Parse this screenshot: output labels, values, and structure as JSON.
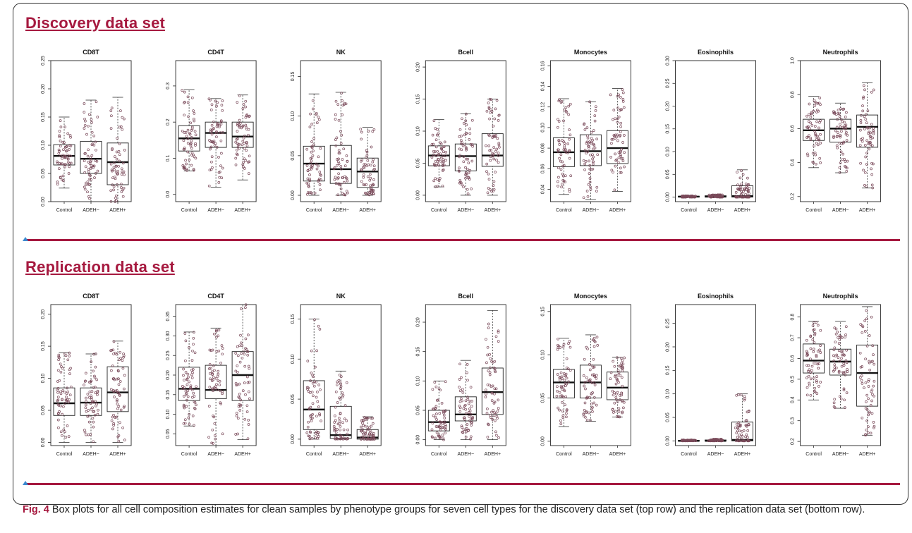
{
  "sections": [
    {
      "title": "Discovery data set"
    },
    {
      "title": "Replication data set"
    }
  ],
  "caption": {
    "fig_label": "Fig. 4",
    "text": " Box plots for all cell composition estimates for clean samples by phenotype groups for seven cell types for the discovery data set (top row) and the replication data set (bottom row)."
  },
  "colors": {
    "accent": "#a6193f",
    "marker": "#3a8ad0",
    "points": "#7a4a5a"
  },
  "chart_data": [
    {
      "type": "box",
      "row": "Discovery data set",
      "title": "CD8T",
      "categories": [
        "Control",
        "ADEH−",
        "ADEH+"
      ],
      "ylim": [
        0,
        0.25
      ],
      "yticks": [
        "0.00",
        "0.05",
        "0.10",
        "0.15",
        "0.20",
        "0.25"
      ],
      "boxes": [
        {
          "min": 0.024,
          "q1": 0.065,
          "median": 0.081,
          "q3": 0.101,
          "max": 0.15
        },
        {
          "min": 0.0,
          "q1": 0.05,
          "median": 0.076,
          "q3": 0.107,
          "max": 0.18
        },
        {
          "min": 0.0,
          "q1": 0.03,
          "median": 0.07,
          "q3": 0.104,
          "max": 0.185
        }
      ]
    },
    {
      "type": "box",
      "row": "Discovery data set",
      "title": "CD4T",
      "categories": [
        "Control",
        "ADEH−",
        "ADEH+"
      ],
      "ylim": [
        -0.02,
        0.37
      ],
      "yticks": [
        "0.0",
        "0.1",
        "0.2",
        "0.3"
      ],
      "boxes": [
        {
          "min": 0.065,
          "q1": 0.12,
          "median": 0.155,
          "q3": 0.19,
          "max": 0.29
        },
        {
          "min": 0.02,
          "q1": 0.13,
          "median": 0.17,
          "q3": 0.2,
          "max": 0.265
        },
        {
          "min": 0.04,
          "q1": 0.13,
          "median": 0.16,
          "q3": 0.2,
          "max": 0.275
        }
      ]
    },
    {
      "type": "box",
      "row": "Discovery data set",
      "title": "NK",
      "categories": [
        "Control",
        "ADEH−",
        "ADEH+"
      ],
      "ylim": [
        -0.008,
        0.17
      ],
      "yticks": [
        "0.00",
        "0.05",
        "0.10",
        "0.15"
      ],
      "boxes": [
        {
          "min": 0.0,
          "q1": 0.018,
          "median": 0.04,
          "q3": 0.062,
          "max": 0.128
        },
        {
          "min": 0.0,
          "q1": 0.015,
          "median": 0.033,
          "q3": 0.063,
          "max": 0.13
        },
        {
          "min": 0.0,
          "q1": 0.01,
          "median": 0.03,
          "q3": 0.047,
          "max": 0.086
        }
      ]
    },
    {
      "type": "box",
      "row": "Discovery data set",
      "title": "Bcell",
      "categories": [
        "Control",
        "ADEH−",
        "ADEH+"
      ],
      "ylim": [
        -0.01,
        0.21
      ],
      "yticks": [
        "0.00",
        "0.05",
        "0.10",
        "0.15",
        "0.20"
      ],
      "boxes": [
        {
          "min": 0.013,
          "q1": 0.046,
          "median": 0.062,
          "q3": 0.077,
          "max": 0.118
        },
        {
          "min": 0.0,
          "q1": 0.038,
          "median": 0.061,
          "q3": 0.08,
          "max": 0.127
        },
        {
          "min": 0.0,
          "q1": 0.045,
          "median": 0.062,
          "q3": 0.096,
          "max": 0.15
        }
      ]
    },
    {
      "type": "box",
      "row": "Discovery data set",
      "title": "Monocytes",
      "categories": [
        "Control",
        "ADEH−",
        "ADEH+"
      ],
      "ylim": [
        0.028,
        0.165
      ],
      "yticks": [
        "0.04",
        "0.06",
        "0.08",
        "0.10",
        "0.12",
        "0.14",
        "0.16"
      ],
      "boxes": [
        {
          "min": 0.035,
          "q1": 0.062,
          "median": 0.076,
          "q3": 0.09,
          "max": 0.128
        },
        {
          "min": 0.03,
          "q1": 0.063,
          "median": 0.077,
          "q3": 0.093,
          "max": 0.125
        },
        {
          "min": 0.038,
          "q1": 0.065,
          "median": 0.08,
          "q3": 0.097,
          "max": 0.138
        }
      ]
    },
    {
      "type": "box",
      "row": "Discovery data set",
      "title": "Eosinophils",
      "categories": [
        "Control",
        "ADEH−",
        "ADEH+"
      ],
      "ylim": [
        -0.01,
        0.3
      ],
      "yticks": [
        "0.00",
        "0.05",
        "0.10",
        "0.15",
        "0.20",
        "0.25",
        "0.30"
      ],
      "boxes": [
        {
          "min": 0.0,
          "q1": 0.0,
          "median": 0.001,
          "q3": 0.002,
          "max": 0.003
        },
        {
          "min": 0.0,
          "q1": 0.0,
          "median": 0.001,
          "q3": 0.003,
          "max": 0.005
        },
        {
          "min": 0.0,
          "q1": 0.0,
          "median": 0.002,
          "q3": 0.025,
          "max": 0.06
        }
      ]
    },
    {
      "type": "box",
      "row": "Discovery data set",
      "title": "Neutrophils",
      "categories": [
        "Control",
        "ADEH−",
        "ADEH+"
      ],
      "ylim": [
        0.17,
        1.0
      ],
      "yticks": [
        "0.2",
        "0.4",
        "0.6",
        "0.8",
        "1.0"
      ],
      "boxes": [
        {
          "min": 0.37,
          "q1": 0.53,
          "median": 0.59,
          "q3": 0.655,
          "max": 0.79
        },
        {
          "min": 0.34,
          "q1": 0.52,
          "median": 0.6,
          "q3": 0.655,
          "max": 0.75
        },
        {
          "min": 0.25,
          "q1": 0.49,
          "median": 0.61,
          "q3": 0.68,
          "max": 0.87
        }
      ]
    },
    {
      "type": "box",
      "row": "Replication data set",
      "title": "CD8T",
      "categories": [
        "Control",
        "ADEH−",
        "ADEH+"
      ],
      "ylim": [
        -0.005,
        0.215
      ],
      "yticks": [
        "0.00",
        "0.05",
        "0.10",
        "0.15",
        "0.20"
      ],
      "boxes": [
        {
          "min": 0.0,
          "q1": 0.042,
          "median": 0.061,
          "q3": 0.085,
          "max": 0.14
        },
        {
          "min": 0.0,
          "q1": 0.042,
          "median": 0.062,
          "q3": 0.085,
          "max": 0.138
        },
        {
          "min": 0.0,
          "q1": 0.048,
          "median": 0.078,
          "q3": 0.118,
          "max": 0.158
        }
      ]
    },
    {
      "type": "box",
      "row": "Replication data set",
      "title": "CD4T",
      "categories": [
        "Control",
        "ADEH−",
        "ADEH+"
      ],
      "ylim": [
        0.02,
        0.38
      ],
      "yticks": [
        "0.05",
        "0.10",
        "0.15",
        "0.20",
        "0.25",
        "0.30",
        "0.35"
      ],
      "boxes": [
        {
          "min": 0.07,
          "q1": 0.135,
          "median": 0.165,
          "q3": 0.22,
          "max": 0.31
        },
        {
          "min": 0.02,
          "q1": 0.14,
          "median": 0.162,
          "q3": 0.225,
          "max": 0.32
        },
        {
          "min": 0.035,
          "q1": 0.135,
          "median": 0.2,
          "q3": 0.26,
          "max": 0.38
        }
      ]
    },
    {
      "type": "box",
      "row": "Replication data set",
      "title": "NK",
      "categories": [
        "Control",
        "ADEH−",
        "ADEH+"
      ],
      "ylim": [
        -0.008,
        0.168
      ],
      "yticks": [
        "0.00",
        "0.05",
        "0.10",
        "0.15"
      ],
      "boxes": [
        {
          "min": 0.0,
          "q1": 0.012,
          "median": 0.037,
          "q3": 0.073,
          "max": 0.15
        },
        {
          "min": 0.0,
          "q1": 0.001,
          "median": 0.005,
          "q3": 0.041,
          "max": 0.085
        },
        {
          "min": 0.0,
          "q1": 0.0,
          "median": 0.002,
          "q3": 0.012,
          "max": 0.028
        }
      ]
    },
    {
      "type": "box",
      "row": "Replication data set",
      "title": "Bcell",
      "categories": [
        "Control",
        "ADEH−",
        "ADEH+"
      ],
      "ylim": [
        -0.01,
        0.23
      ],
      "yticks": [
        "0.00",
        "0.05",
        "0.10",
        "0.15",
        "0.20"
      ],
      "boxes": [
        {
          "min": 0.0,
          "q1": 0.015,
          "median": 0.03,
          "q3": 0.05,
          "max": 0.1
        },
        {
          "min": 0.0,
          "q1": 0.032,
          "median": 0.043,
          "q3": 0.073,
          "max": 0.135
        },
        {
          "min": 0.0,
          "q1": 0.043,
          "median": 0.081,
          "q3": 0.122,
          "max": 0.22
        }
      ]
    },
    {
      "type": "box",
      "row": "Replication data set",
      "title": "Monocytes",
      "categories": [
        "Control",
        "ADEH−",
        "ADEH+"
      ],
      "ylim": [
        -0.005,
        0.158
      ],
      "yticks": [
        "0.00",
        "0.05",
        "0.10",
        "0.15"
      ],
      "boxes": [
        {
          "min": 0.017,
          "q1": 0.05,
          "median": 0.068,
          "q3": 0.083,
          "max": 0.119
        },
        {
          "min": 0.023,
          "q1": 0.05,
          "median": 0.068,
          "q3": 0.088,
          "max": 0.123
        },
        {
          "min": 0.028,
          "q1": 0.048,
          "median": 0.062,
          "q3": 0.08,
          "max": 0.097
        }
      ]
    },
    {
      "type": "box",
      "row": "Replication data set",
      "title": "Eosinophils",
      "categories": [
        "Control",
        "ADEH−",
        "ADEH+"
      ],
      "ylim": [
        -0.01,
        0.29
      ],
      "yticks": [
        "0.00",
        "0.05",
        "0.10",
        "0.15",
        "0.20",
        "0.25"
      ],
      "boxes": [
        {
          "min": 0.0,
          "q1": 0.0,
          "median": 0.0,
          "q3": 0.001,
          "max": 0.002
        },
        {
          "min": 0.0,
          "q1": 0.0,
          "median": 0.0,
          "q3": 0.002,
          "max": 0.004
        },
        {
          "min": 0.0,
          "q1": 0.0,
          "median": 0.002,
          "q3": 0.04,
          "max": 0.1
        }
      ]
    },
    {
      "type": "box",
      "row": "Replication data set",
      "title": "Neutrophils",
      "categories": [
        "Control",
        "ADEH−",
        "ADEH+"
      ],
      "ylim": [
        0.18,
        0.86
      ],
      "yticks": [
        "0.2",
        "0.3",
        "0.4",
        "0.5",
        "0.6",
        "0.7",
        "0.8"
      ],
      "boxes": [
        {
          "min": 0.4,
          "q1": 0.53,
          "median": 0.59,
          "q3": 0.67,
          "max": 0.78
        },
        {
          "min": 0.36,
          "q1": 0.52,
          "median": 0.585,
          "q3": 0.645,
          "max": 0.78
        },
        {
          "min": 0.23,
          "q1": 0.37,
          "median": 0.53,
          "q3": 0.665,
          "max": 0.85
        }
      ]
    }
  ]
}
